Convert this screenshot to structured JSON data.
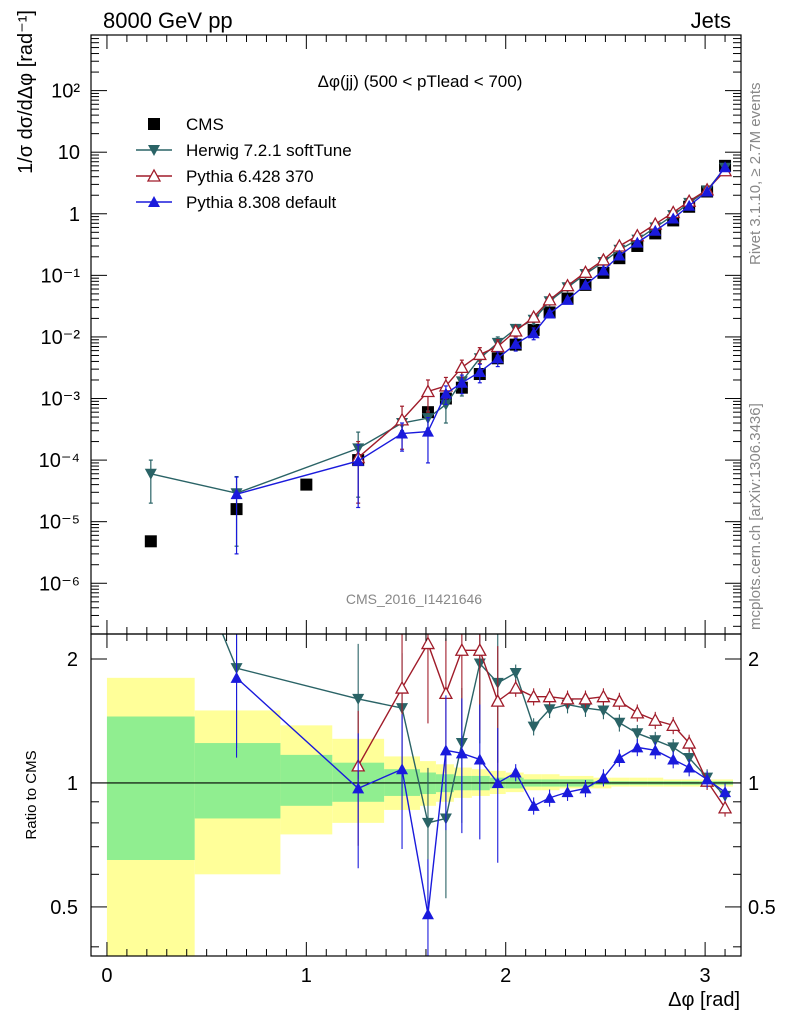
{
  "header": {
    "left": "8000 GeV pp",
    "right": "Jets"
  },
  "side_labels": {
    "top": "Rivet 3.1.10, ≥ 2.7M events",
    "bottom": "mcplots.cern.ch [arXiv:1306.3436]"
  },
  "watermark": "CMS_2016_I1421646",
  "chart_data": [
    {
      "type": "scatter",
      "title": "Δφ(jj) (500 < pTlead <  700)",
      "ylabel": "1/σ dσ/dΔφ [rad⁻¹]",
      "yscale": "log",
      "xlim": [
        -0.08,
        3.18
      ],
      "ylim": [
        1.5e-07,
        800
      ],
      "yticks": [
        "10⁻⁶",
        "10⁻⁵",
        "10⁻⁴",
        "10⁻³",
        "10⁻²",
        "10⁻¹",
        "1",
        "10",
        "10²"
      ],
      "legend_placement": "top-left",
      "series": [
        {
          "name": "CMS",
          "color": "#000000",
          "marker": "square",
          "x": [
            0.22,
            0.65,
            1.0,
            1.26,
            1.61,
            1.7,
            1.78,
            1.87,
            1.96,
            2.05,
            2.14,
            2.22,
            2.31,
            2.4,
            2.49,
            2.57,
            2.66,
            2.75,
            2.84,
            2.92,
            3.01,
            3.1
          ],
          "y": [
            4.8e-06,
            1.6e-05,
            4e-05,
            0.0001,
            0.0006,
            0.001,
            0.0015,
            0.0025,
            0.0045,
            0.0075,
            0.013,
            0.025,
            0.042,
            0.07,
            0.11,
            0.19,
            0.3,
            0.48,
            0.78,
            1.3,
            2.3,
            6.0
          ]
        },
        {
          "name": "Herwig 7.2.1 softTune",
          "color": "#2a6366",
          "marker": "triangle-down",
          "x": [
            0.22,
            0.65,
            1.26,
            1.48,
            1.61,
            1.7,
            1.78,
            1.87,
            1.96,
            2.05,
            2.14,
            2.22,
            2.31,
            2.4,
            2.49,
            2.57,
            2.66,
            2.75,
            2.84,
            2.92,
            3.01,
            3.1
          ],
          "y": [
            6e-05,
            2.9e-05,
            0.000155,
            0.0004,
            0.00048,
            0.0008,
            0.0019,
            0.0045,
            0.008,
            0.0135,
            0.019,
            0.038,
            0.064,
            0.105,
            0.165,
            0.26,
            0.38,
            0.6,
            0.95,
            1.5,
            2.4,
            5.6
          ],
          "yerr": [
            4e-05,
            2.5e-05,
            0.00013,
            0.0001,
            0.00015,
            0.0004,
            0.0008,
            0.0015,
            0.002,
            0.002,
            0.003,
            0.004,
            0.005,
            0.007,
            0.01,
            0.015,
            0.02,
            0.03,
            0.04,
            0.05,
            0.08,
            0.15
          ]
        },
        {
          "name": "Pythia 6.428 370",
          "color": "#a01c2a",
          "marker": "triangle-up-open",
          "x": [
            1.26,
            1.48,
            1.61,
            1.7,
            1.78,
            1.87,
            1.96,
            2.05,
            2.14,
            2.22,
            2.31,
            2.4,
            2.49,
            2.57,
            2.66,
            2.75,
            2.84,
            2.92,
            3.01,
            3.1
          ],
          "y": [
            0.00011,
            0.00045,
            0.0013,
            0.0016,
            0.0032,
            0.0052,
            0.007,
            0.0125,
            0.021,
            0.04,
            0.068,
            0.112,
            0.178,
            0.3,
            0.44,
            0.68,
            1.05,
            1.6,
            2.45,
            5.0
          ],
          "yerr": [
            9e-05,
            0.0003,
            0.0007,
            0.0006,
            0.001,
            0.0015,
            0.002,
            0.0025,
            0.003,
            0.004,
            0.005,
            0.007,
            0.01,
            0.015,
            0.02,
            0.03,
            0.04,
            0.05,
            0.08,
            0.15
          ]
        },
        {
          "name": "Pythia 8.308 default",
          "color": "#1a1adc",
          "marker": "triangle-up",
          "x": [
            0.65,
            1.26,
            1.48,
            1.61,
            1.7,
            1.78,
            1.87,
            1.96,
            2.05,
            2.14,
            2.22,
            2.31,
            2.4,
            2.49,
            2.57,
            2.66,
            2.75,
            2.84,
            2.92,
            3.01,
            3.1
          ],
          "y": [
            2.8e-05,
            9.7e-05,
            0.00027,
            0.00029,
            0.0012,
            0.0018,
            0.0027,
            0.0045,
            0.0077,
            0.0115,
            0.024,
            0.04,
            0.07,
            0.12,
            0.21,
            0.34,
            0.53,
            0.84,
            1.35,
            2.3,
            5.7
          ],
          "yerr": [
            2.5e-05,
            8e-05,
            0.00013,
            0.0002,
            0.0004,
            0.0006,
            0.0009,
            0.0012,
            0.0018,
            0.0025,
            0.003,
            0.004,
            0.006,
            0.009,
            0.013,
            0.02,
            0.03,
            0.04,
            0.05,
            0.08,
            0.15
          ]
        }
      ]
    },
    {
      "type": "line",
      "xlabel": "Δφ [rad]",
      "ylabel": "Ratio to CMS",
      "xlim": [
        -0.08,
        3.18
      ],
      "ylim": [
        0.38,
        2.3
      ],
      "xticks": [
        0,
        1,
        2,
        3
      ],
      "yticks": [
        0.5,
        1,
        2
      ],
      "reference_line": 1,
      "bands": [
        {
          "name": "outer",
          "color": "#ffff99",
          "edges": [
            0,
            0.44,
            0.87,
            1.13,
            1.39,
            1.57,
            1.65,
            1.74,
            1.83,
            1.92,
            2.0,
            2.09,
            2.18,
            2.27,
            2.36,
            2.44,
            2.53,
            2.62,
            2.71,
            2.79,
            2.88,
            2.97,
            3.06,
            3.14
          ],
          "lo": [
            0.35,
            0.6,
            0.75,
            0.8,
            0.86,
            0.88,
            0.9,
            0.92,
            0.93,
            0.94,
            0.95,
            0.96,
            0.96,
            0.97,
            0.97,
            0.97,
            0.98,
            0.98,
            0.98,
            0.98,
            0.98,
            0.98,
            0.98
          ],
          "hi": [
            1.8,
            1.5,
            1.38,
            1.28,
            1.16,
            1.13,
            1.11,
            1.09,
            1.08,
            1.07,
            1.06,
            1.05,
            1.05,
            1.04,
            1.04,
            1.03,
            1.03,
            1.03,
            1.03,
            1.02,
            1.02,
            1.02,
            1.02
          ]
        },
        {
          "name": "inner",
          "color": "#90ee90",
          "edges": [
            0,
            0.44,
            0.87,
            1.13,
            1.39,
            1.57,
            1.65,
            1.74,
            1.83,
            1.92,
            2.0,
            2.09,
            2.18,
            2.27,
            2.36,
            2.44,
            2.53,
            2.62,
            2.71,
            2.79,
            2.88,
            2.97,
            3.06,
            3.14
          ],
          "lo": [
            0.65,
            0.82,
            0.88,
            0.9,
            0.93,
            0.94,
            0.95,
            0.96,
            0.96,
            0.97,
            0.97,
            0.98,
            0.98,
            0.98,
            0.98,
            0.99,
            0.99,
            0.99,
            0.99,
            0.99,
            0.99,
            0.99,
            0.99
          ],
          "hi": [
            1.45,
            1.25,
            1.17,
            1.12,
            1.08,
            1.06,
            1.05,
            1.04,
            1.04,
            1.03,
            1.03,
            1.02,
            1.02,
            1.02,
            1.02,
            1.01,
            1.01,
            1.01,
            1.01,
            1.01,
            1.01,
            1.01,
            1.01
          ]
        }
      ],
      "series": [
        {
          "name": "Herwig 7.2.1 softTune",
          "color": "#2a6366",
          "marker": "triangle-down",
          "x": [
            0.65,
            1.26,
            1.48,
            1.61,
            1.7,
            1.78,
            1.87,
            1.96,
            2.05,
            2.14,
            2.22,
            2.31,
            2.4,
            2.49,
            2.57,
            2.66,
            2.75,
            2.84,
            2.92,
            3.01,
            3.1
          ],
          "y": [
            1.9,
            1.6,
            1.52,
            0.8,
            0.82,
            1.25,
            1.95,
            1.75,
            1.85,
            1.37,
            1.51,
            1.55,
            1.52,
            1.5,
            1.4,
            1.32,
            1.27,
            1.22,
            1.15,
            1.03,
            0.93
          ],
          "top_start": [
            0.58,
            2.3
          ]
        },
        {
          "name": "Pythia 6.428 370",
          "color": "#a01c2a",
          "marker": "triangle-up-open",
          "x": [
            1.26,
            1.48,
            1.61,
            1.7,
            1.78,
            1.87,
            1.96,
            2.05,
            2.14,
            2.22,
            2.31,
            2.4,
            2.49,
            2.57,
            2.66,
            2.75,
            2.84,
            2.92,
            3.01,
            3.1
          ],
          "y": [
            1.1,
            1.7,
            2.18,
            1.65,
            2.1,
            2.1,
            1.58,
            1.7,
            1.62,
            1.62,
            1.6,
            1.6,
            1.62,
            1.58,
            1.48,
            1.42,
            1.38,
            1.25,
            1.01,
            0.87
          ]
        },
        {
          "name": "Pythia 8.308 default",
          "color": "#1a1adc",
          "marker": "triangle-up",
          "x": [
            0.65,
            1.26,
            1.48,
            1.61,
            1.7,
            1.78,
            1.87,
            1.96,
            2.05,
            2.14,
            2.22,
            2.31,
            2.4,
            2.49,
            2.57,
            2.66,
            2.75,
            2.84,
            2.92,
            3.01,
            3.1
          ],
          "y": [
            1.8,
            0.97,
            1.08,
            0.48,
            1.2,
            1.18,
            1.14,
            1.0,
            1.06,
            0.88,
            0.92,
            0.95,
            0.97,
            1.03,
            1.15,
            1.22,
            1.2,
            1.14,
            1.09,
            1.02,
            0.95
          ]
        }
      ]
    }
  ]
}
